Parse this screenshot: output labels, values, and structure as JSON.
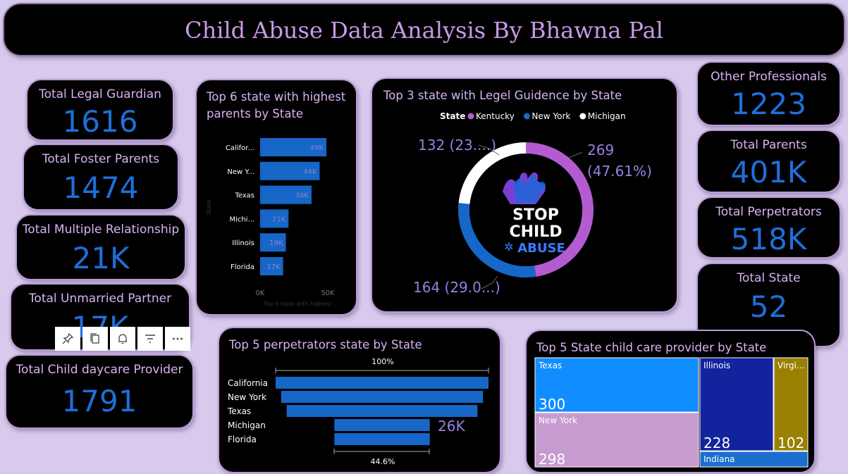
{
  "title": "Child Abuse Data Analysis By Bhawna Pal",
  "kpis": {
    "legal_guardian": {
      "label": "Total Legal Guardian",
      "value": "1616"
    },
    "foster_parents": {
      "label": "Total Foster Parents",
      "value": "1474"
    },
    "multiple_relationship": {
      "label": "Total Multiple Relationship",
      "value": "21K"
    },
    "unmarried_partner": {
      "label": "Total Unmarried Partner",
      "value": "17K"
    },
    "child_daycare": {
      "label": "Total Child daycare Provider",
      "value": "1791"
    },
    "other_professionals": {
      "label": "Other Professionals",
      "value": "1223"
    },
    "total_parents": {
      "label": "Total Parents",
      "value": "401K"
    },
    "total_perpetrators": {
      "label": "Total Perpetrators",
      "value": "518K"
    },
    "total_state": {
      "label": "Total State",
      "value": "52"
    }
  },
  "colors": {
    "background": "#d7caec",
    "card": "#000000",
    "bar": "#1667c7",
    "label": "#d6b3f2",
    "kpi_value": "#1e6fd9"
  },
  "logo_text": [
    "STOP",
    "CHILD",
    "ABUSE"
  ],
  "toolbar_icons": [
    "pin-icon",
    "copy-icon",
    "bell-icon",
    "filter-icon",
    "more-icon"
  ],
  "chart_data": [
    {
      "type": "bar",
      "title": "Top 6 state with highest parents by State",
      "ylabel": "State",
      "xlabel": "Top 6 state with highest ...",
      "categories": [
        "Califor...",
        "New Y...",
        "Texas",
        "Michi...",
        "Illinois",
        "Florida"
      ],
      "values": [
        49000,
        44000,
        38000,
        21000,
        19000,
        17000
      ],
      "data_labels": [
        "49K",
        "44K",
        "38K",
        "21K",
        "19K",
        "17K"
      ],
      "xlim": [
        0,
        50000
      ],
      "xticks": [
        "0K",
        "50K"
      ]
    },
    {
      "type": "pie",
      "title": "Top 3 state with Legel Guidence by State",
      "legend_title": "State",
      "legend_position": "top",
      "categories": [
        "Kentucky",
        "New York",
        "Michigan"
      ],
      "values": [
        269,
        164,
        132
      ],
      "colors": [
        "#b45bd0",
        "#1667c7",
        "#ffffff"
      ],
      "data_labels": [
        [
          "269",
          "(47.61%)"
        ],
        [
          "164 (29.0...)"
        ],
        [
          "132 (23....)"
        ]
      ]
    },
    {
      "type": "bar",
      "title": "Top 5 perpetrators state by State",
      "categories": [
        "California",
        "New York",
        "Texas",
        "Michigan",
        "Florida"
      ],
      "values": [
        58000,
        55000,
        52000,
        26000,
        26000
      ],
      "top_label": "100%",
      "bottom_label": "44.6%",
      "value_label": "26K"
    },
    {
      "type": "heatmap",
      "title": "Top 5 State child care provider by State",
      "categories": [
        "Texas",
        "New York",
        "Illinois",
        "Virgi...",
        "Indiana"
      ],
      "values": [
        300,
        298,
        228,
        102,
        null
      ],
      "value_labels": [
        "300",
        "298",
        "228",
        "102",
        ""
      ],
      "colors": [
        "#118dff",
        "#c79ad0",
        "#12239e",
        "#9a8000",
        "#1a6fcf"
      ]
    }
  ]
}
